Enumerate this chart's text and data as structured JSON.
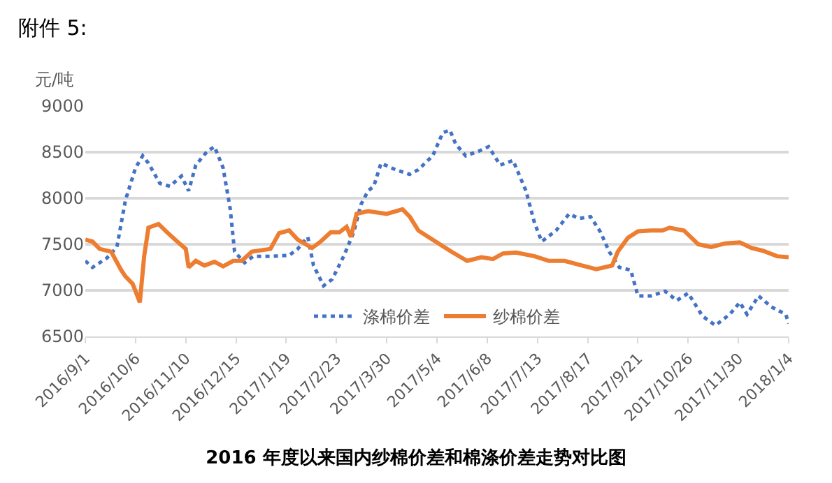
{
  "chart_data": {
    "type": "line",
    "title": "2016 年度以来国内纱棉价差和棉涤价差走势对比图",
    "ylabel": "元/吨",
    "annotations": [
      "附件 5:"
    ],
    "xlim": [
      "2016-09-01",
      "2018-01-04"
    ],
    "xticks": [
      {
        "value": "2016-09-01",
        "label": "2016/9/1"
      },
      {
        "value": "2016-10-06",
        "label": "2016/10/6"
      },
      {
        "value": "2016-11-10",
        "label": "2016/11/10"
      },
      {
        "value": "2016-12-15",
        "label": "2016/12/15"
      },
      {
        "value": "2017-01-19",
        "label": "2017/1/19"
      },
      {
        "value": "2017-02-23",
        "label": "2017/2/23"
      },
      {
        "value": "2017-03-30",
        "label": "2017/3/30"
      },
      {
        "value": "2017-05-04",
        "label": "2017/5/4"
      },
      {
        "value": "2017-06-08",
        "label": "2017/6/8"
      },
      {
        "value": "2017-07-13",
        "label": "2017/7/13"
      },
      {
        "value": "2017-08-17",
        "label": "2017/8/17"
      },
      {
        "value": "2017-09-21",
        "label": "2017/9/21"
      },
      {
        "value": "2017-10-26",
        "label": "2017/10/26"
      },
      {
        "value": "2017-11-30",
        "label": "2017/11/30"
      },
      {
        "value": "2018-01-04",
        "label": "2018/1/4"
      }
    ],
    "ylim": [
      6500,
      9000
    ],
    "yticks": [
      6500,
      7000,
      7500,
      8000,
      8500,
      9000
    ],
    "grid": "y",
    "legend": "bottom",
    "marker": "none",
    "series": [
      {
        "name": "涤棉价差",
        "color": "#4472c4",
        "line_style": "dotted",
        "x": [
          "2016-09-01",
          "2016-09-06",
          "2016-09-16",
          "2016-09-23",
          "2016-09-29",
          "2016-10-06",
          "2016-10-11",
          "2016-10-15",
          "2016-10-23",
          "2016-10-30",
          "2016-11-07",
          "2016-11-12",
          "2016-11-17",
          "2016-11-25",
          "2016-11-30",
          "2016-12-06",
          "2016-12-11",
          "2016-12-14",
          "2016-12-21",
          "2016-12-27",
          "2017-01-08",
          "2017-01-21",
          "2017-01-27",
          "2017-02-03",
          "2017-02-07",
          "2017-02-14",
          "2017-02-20",
          "2017-02-28",
          "2017-03-07",
          "2017-03-12",
          "2017-03-17",
          "2017-03-21",
          "2017-03-26",
          "2017-04-05",
          "2017-04-15",
          "2017-04-21",
          "2017-05-01",
          "2017-05-08",
          "2017-05-13",
          "2017-05-17",
          "2017-05-24",
          "2017-06-02",
          "2017-06-09",
          "2017-06-17",
          "2017-06-26",
          "2017-07-05",
          "2017-07-11",
          "2017-07-16",
          "2017-07-26",
          "2017-08-04",
          "2017-08-11",
          "2017-08-19",
          "2017-08-26",
          "2017-09-01",
          "2017-09-08",
          "2017-09-16",
          "2017-09-21",
          "2017-09-30",
          "2017-10-10",
          "2017-10-18",
          "2017-10-26",
          "2017-11-05",
          "2017-11-14",
          "2017-11-24",
          "2017-12-01",
          "2017-12-06",
          "2017-12-14",
          "2017-12-23",
          "2018-01-02",
          "2018-01-04"
        ],
        "values": [
          7320,
          7250,
          7350,
          7470,
          7980,
          8330,
          8460,
          8380,
          8160,
          8130,
          8240,
          8080,
          8360,
          8510,
          8560,
          8330,
          7880,
          7420,
          7300,
          7370,
          7370,
          7380,
          7450,
          7580,
          7270,
          7050,
          7120,
          7370,
          7630,
          7930,
          8080,
          8130,
          8380,
          8310,
          8260,
          8310,
          8460,
          8710,
          8740,
          8590,
          8460,
          8510,
          8560,
          8360,
          8410,
          8080,
          7730,
          7530,
          7650,
          7830,
          7780,
          7800,
          7630,
          7420,
          7250,
          7220,
          6940,
          6940,
          6990,
          6890,
          6970,
          6720,
          6620,
          6740,
          6870,
          6740,
          6940,
          6820,
          6740,
          6640
        ]
      },
      {
        "name": "纱棉价差",
        "color": "#ed7d31",
        "line_style": "solid",
        "x": [
          "2016-09-01",
          "2016-09-06",
          "2016-09-11",
          "2016-09-19",
          "2016-09-26",
          "2016-09-29",
          "2016-10-04",
          "2016-10-09",
          "2016-10-12",
          "2016-10-15",
          "2016-10-22",
          "2016-10-28",
          "2016-11-04",
          "2016-11-10",
          "2016-11-12",
          "2016-11-17",
          "2016-11-23",
          "2016-11-30",
          "2016-12-06",
          "2016-12-13",
          "2016-12-19",
          "2016-12-26",
          "2017-01-08",
          "2017-01-14",
          "2017-01-21",
          "2017-01-27",
          "2017-02-06",
          "2017-02-12",
          "2017-02-19",
          "2017-02-25",
          "2017-03-02",
          "2017-03-05",
          "2017-03-09",
          "2017-03-17",
          "2017-03-30",
          "2017-04-10",
          "2017-04-15",
          "2017-04-21",
          "2017-04-28",
          "2017-05-06",
          "2017-05-14",
          "2017-05-25",
          "2017-06-04",
          "2017-06-12",
          "2017-06-19",
          "2017-06-28",
          "2017-07-11",
          "2017-07-21",
          "2017-08-01",
          "2017-08-13",
          "2017-08-23",
          "2017-09-03",
          "2017-09-07",
          "2017-09-14",
          "2017-09-21",
          "2017-09-30",
          "2017-10-08",
          "2017-10-13",
          "2017-10-23",
          "2017-11-02",
          "2017-11-11",
          "2017-11-21",
          "2017-12-01",
          "2017-12-09",
          "2017-12-17",
          "2017-12-27",
          "2018-01-04"
        ],
        "values": [
          7550,
          7530,
          7450,
          7420,
          7220,
          7150,
          7070,
          6870,
          7370,
          7680,
          7720,
          7630,
          7530,
          7450,
          7250,
          7320,
          7270,
          7310,
          7260,
          7320,
          7320,
          7420,
          7450,
          7620,
          7650,
          7550,
          7460,
          7530,
          7630,
          7630,
          7690,
          7580,
          7830,
          7860,
          7830,
          7880,
          7800,
          7650,
          7580,
          7500,
          7420,
          7320,
          7360,
          7340,
          7400,
          7410,
          7370,
          7320,
          7320,
          7270,
          7230,
          7270,
          7420,
          7570,
          7640,
          7650,
          7650,
          7680,
          7650,
          7500,
          7470,
          7510,
          7520,
          7460,
          7430,
          7370,
          7360
        ]
      }
    ]
  }
}
